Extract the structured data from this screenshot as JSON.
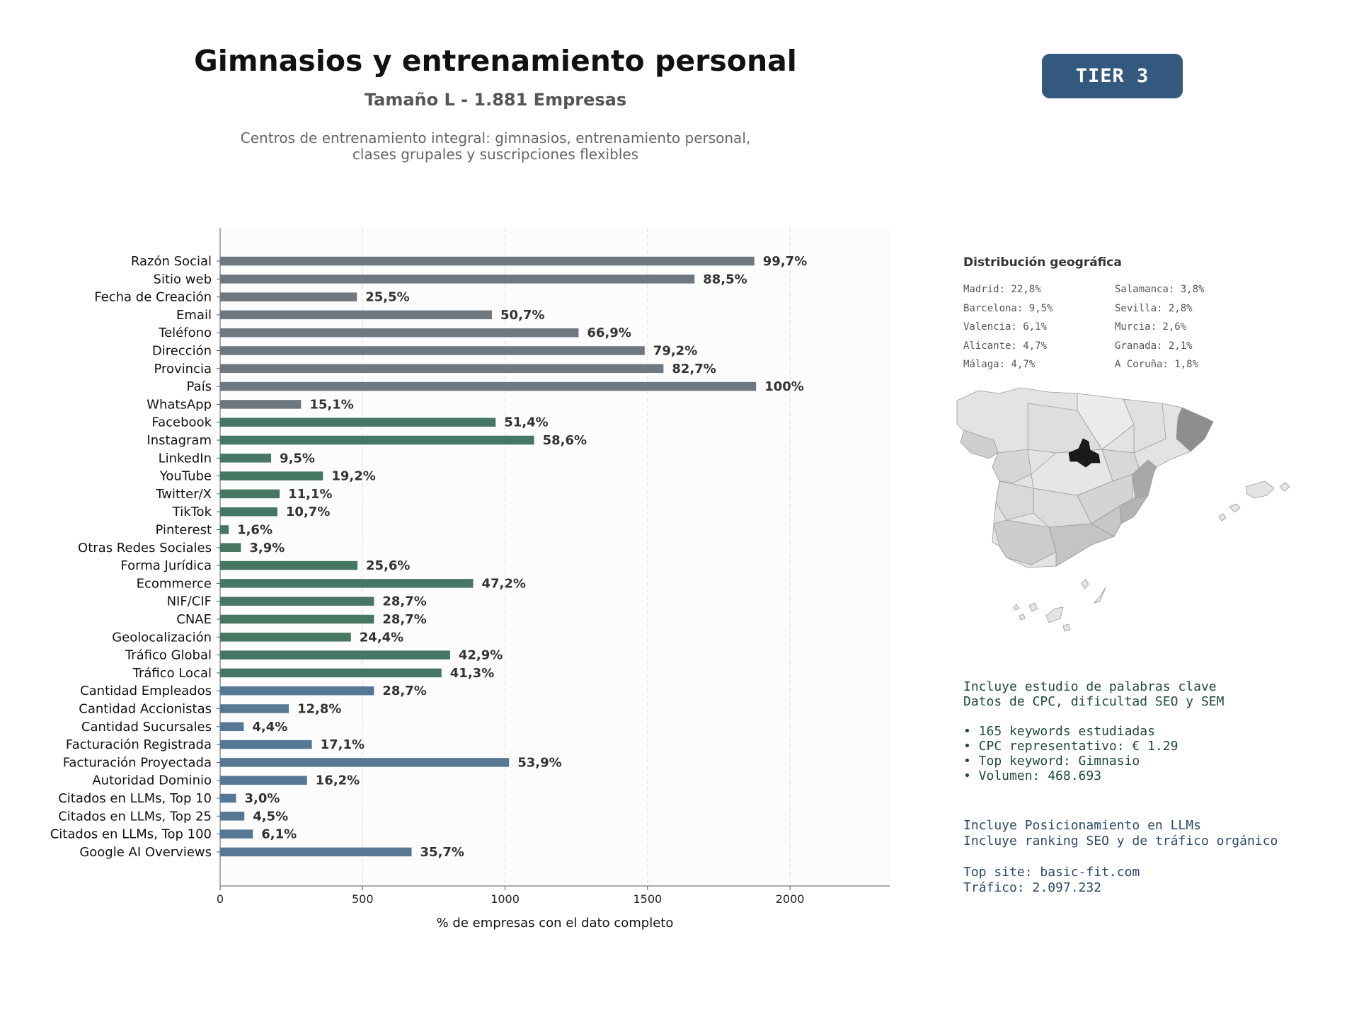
{
  "header": {
    "title": "Gimnasios y entrenamiento personal",
    "subtitle": "Tamaño L - 1.881 Empresas",
    "description_line1": "Centros de entrenamiento integral: gimnasios, entrenamiento personal,",
    "description_line2": "clases grupales y suscripciones flexibles",
    "tier": "TIER 3"
  },
  "chart_data": {
    "type": "bar",
    "orientation": "horizontal",
    "xlabel": "% de empresas con el dato completo",
    "xlim": [
      0,
      2350
    ],
    "xticks": [
      0,
      500,
      1000,
      1500,
      2000
    ],
    "grid": true,
    "categories": [
      "Razón Social",
      "Sitio web",
      "Fecha de Creación",
      "Email",
      "Teléfono",
      "Dirección",
      "Provincia",
      "País",
      "WhatsApp",
      "Facebook",
      "Instagram",
      "LinkedIn",
      "YouTube",
      "Twitter/X",
      "TikTok",
      "Pinterest",
      "Otras Redes Sociales",
      "Forma Jurídica",
      "Ecommerce",
      "NIF/CIF",
      "CNAE",
      "Geolocalización",
      "Tráfico Global",
      "Tráfico Local",
      "Cantidad Empleados",
      "Cantidad Accionistas",
      "Cantidad Sucursales",
      "Facturación Registrada",
      "Facturación Proyectada",
      "Autoridad Dominio",
      "Citados en LLMs, Top 10",
      "Citados en LLMs, Top 25",
      "Citados en LLMs, Top 100",
      "Google AI Overviews"
    ],
    "values": [
      1875,
      1665,
      480,
      954,
      1258,
      1490,
      1556,
      1881,
      284,
      967,
      1102,
      179,
      361,
      209,
      201,
      30,
      73,
      482,
      888,
      540,
      540,
      459,
      807,
      777,
      540,
      241,
      83,
      322,
      1014,
      305,
      56,
      85,
      115,
      672
    ],
    "labels": [
      "99,7%",
      "88,5%",
      "25,5%",
      "50,7%",
      "66,9%",
      "79,2%",
      "82,7%",
      "100%",
      "15,1%",
      "51,4%",
      "58,6%",
      "9,5%",
      "19,2%",
      "11,1%",
      "10,7%",
      "1,6%",
      "3,9%",
      "25,6%",
      "47,2%",
      "28,7%",
      "28,7%",
      "24,4%",
      "42,9%",
      "41,3%",
      "28,7%",
      "12,8%",
      "4,4%",
      "17,1%",
      "53,9%",
      "16,2%",
      "3,0%",
      "4,5%",
      "6,1%",
      "35,7%"
    ],
    "groups": [
      "gray",
      "gray",
      "gray",
      "gray",
      "gray",
      "gray",
      "gray",
      "gray",
      "gray",
      "green",
      "green",
      "green",
      "green",
      "green",
      "green",
      "green",
      "green",
      "green",
      "green",
      "green",
      "green",
      "green",
      "green",
      "green",
      "blue",
      "blue",
      "blue",
      "blue",
      "blue",
      "blue",
      "blue",
      "blue",
      "blue",
      "blue"
    ],
    "colors": {
      "gray": "#6e7880",
      "green": "#467763",
      "blue": "#567895"
    }
  },
  "geo": {
    "title": "Distribución geográfica",
    "items": [
      "Madrid: 22,8%",
      "Salamanca: 3,8%",
      "Barcelona: 9,5%",
      "Sevilla: 2,8%",
      "Valencia: 6,1%",
      "Murcia: 2,6%",
      "Alicante: 4,7%",
      "Granada: 2,1%",
      "Málaga: 4,7%",
      "A Coruña: 1,8%"
    ]
  },
  "keywords": {
    "line1": "Incluye estudio de palabras clave",
    "line2": "Datos de CPC, dificultad SEO y SEM",
    "bullet1": "• 165 keywords estudiadas",
    "bullet2": "• CPC representativo: € 1.29",
    "bullet3": "• Top keyword: Gimnasio",
    "bullet4": "• Volumen: 468.693"
  },
  "llm": {
    "line1": "Incluye Posicionamiento en LLMs",
    "line2": "Incluye ranking SEO y de tráfico orgánico",
    "line3": "Top site: basic-fit.com",
    "line4": "Tráfico: 2.097.232"
  }
}
